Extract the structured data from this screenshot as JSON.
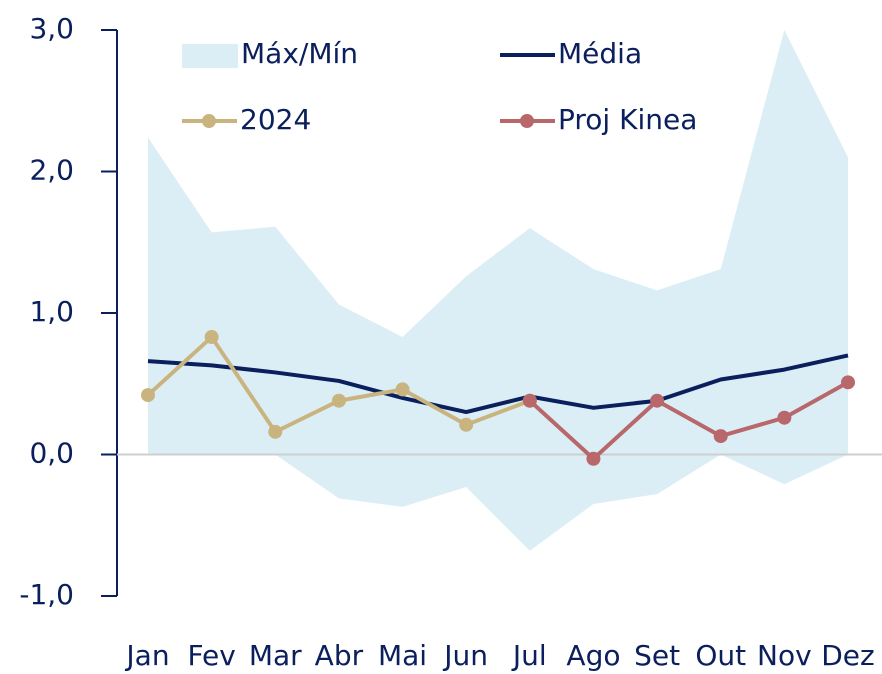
{
  "chart_data": {
    "type": "line",
    "categories": [
      "Jan",
      "Fev",
      "Mar",
      "Abr",
      "Mai",
      "Jun",
      "Jul",
      "Ago",
      "Set",
      "Out",
      "Nov",
      "Dez"
    ],
    "band": {
      "name": "Máx/Mín",
      "color": "#dbeef6",
      "max": [
        2.24,
        1.57,
        1.61,
        1.06,
        0.83,
        1.26,
        1.6,
        1.31,
        1.16,
        1.31,
        3.0,
        2.1
      ],
      "min": [
        0,
        0,
        0,
        -0.31,
        -0.37,
        -0.23,
        -0.68,
        -0.35,
        -0.28,
        0,
        -0.21,
        0
      ]
    },
    "series": [
      {
        "name": "Média",
        "color": "#0a1f5c",
        "markers": false,
        "values": [
          0.66,
          0.63,
          0.58,
          0.52,
          0.4,
          0.3,
          0.41,
          0.33,
          0.38,
          0.53,
          0.6,
          0.7
        ]
      },
      {
        "name": "2024",
        "color": "#c9b47f",
        "markers": true,
        "values": [
          0.42,
          0.83,
          0.16,
          0.38,
          0.46,
          0.21,
          0.38,
          null,
          null,
          null,
          null,
          null
        ]
      },
      {
        "name": "Proj Kinea",
        "color": "#b8676b",
        "markers": true,
        "values": [
          null,
          null,
          null,
          null,
          null,
          null,
          0.38,
          -0.03,
          0.38,
          0.13,
          0.26,
          0.51
        ]
      }
    ],
    "ylim": [
      -1,
      3
    ],
    "yticks": [
      {
        "value": -1,
        "label": "-1,0"
      },
      {
        "value": 0,
        "label": "0,0"
      },
      {
        "value": 1,
        "label": "1,0"
      },
      {
        "value": 2,
        "label": "2,0"
      },
      {
        "value": 3,
        "label": "3,0"
      }
    ]
  }
}
